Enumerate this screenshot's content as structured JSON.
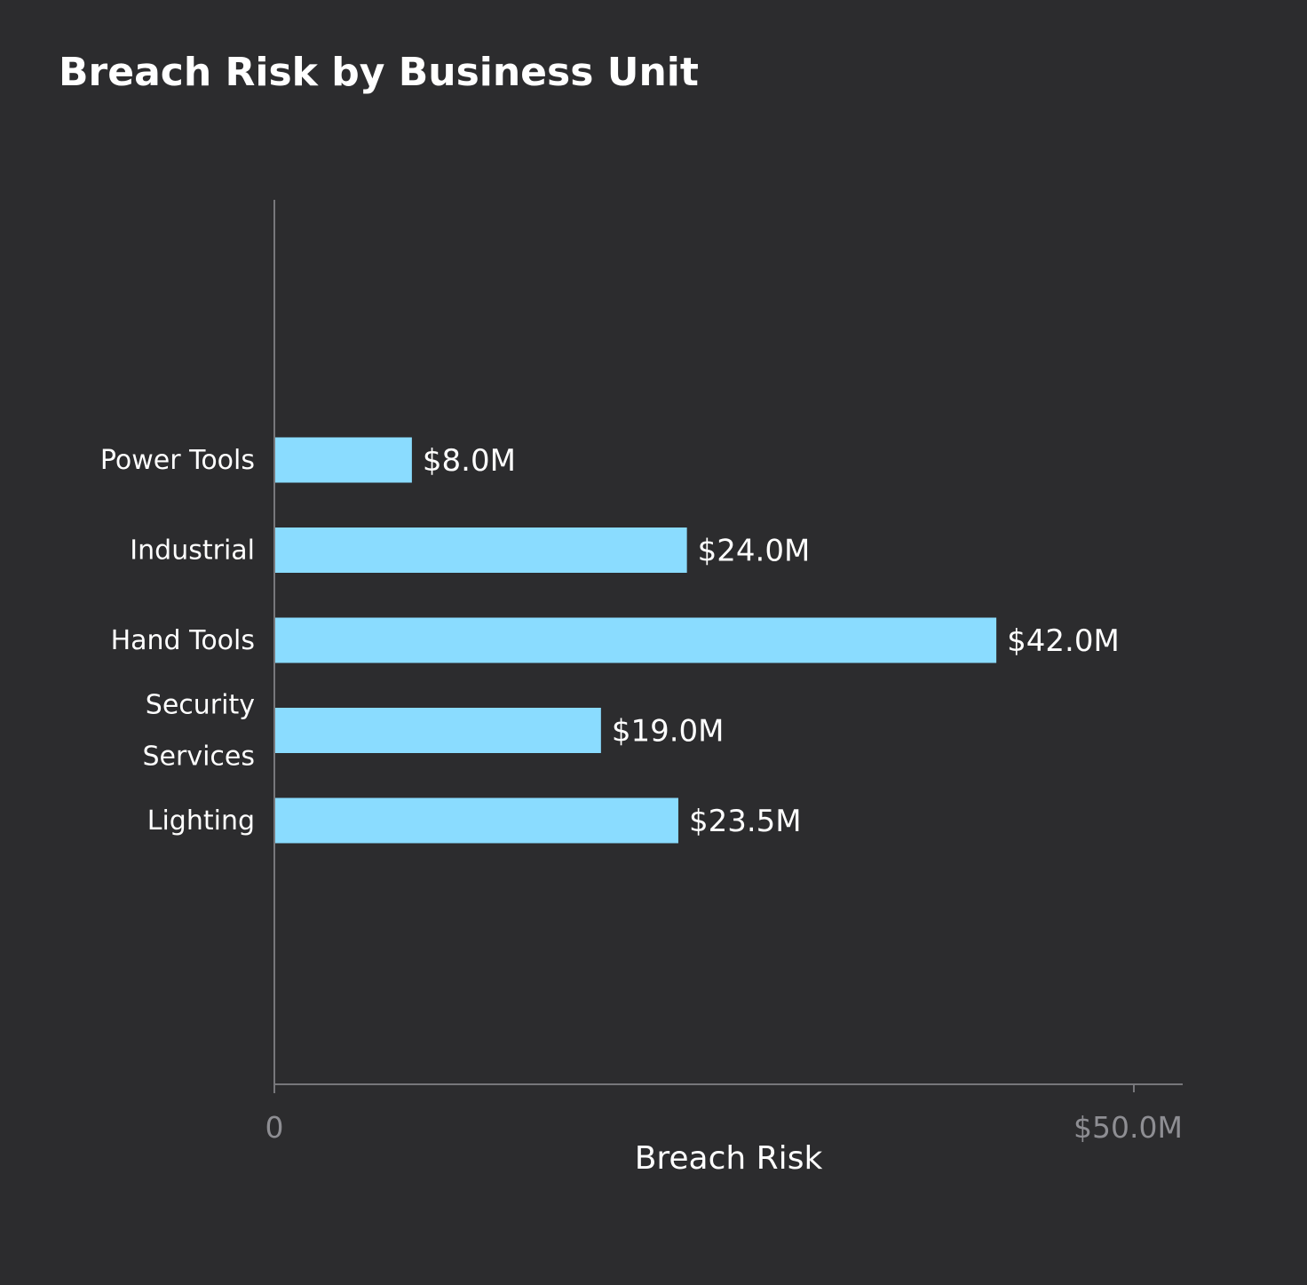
{
  "chart_data": {
    "type": "bar",
    "orientation": "horizontal",
    "title": "Breach Risk by Business Unit",
    "xlabel": "Breach Risk",
    "ylabel": "",
    "categories": [
      "Power Tools",
      "Industrial",
      "Hand Tools",
      "Security Services",
      "Lighting"
    ],
    "values": [
      8.0,
      24.0,
      42.0,
      19.0,
      23.5
    ],
    "value_labels": [
      "$8.0M",
      "$24.0M",
      "$42.0M",
      "$19.0M",
      "$23.5M"
    ],
    "xlim": [
      0,
      50
    ],
    "x_ticks": [
      0,
      50
    ],
    "x_tick_labels": [
      "0",
      "$50.0M"
    ],
    "grid": false,
    "legend": "none",
    "colors": {
      "background": "#2c2c2e",
      "bar": "#8adcff",
      "axis": "#77777b",
      "text": "#ffffff",
      "tick_text": "#8e8e93"
    }
  }
}
